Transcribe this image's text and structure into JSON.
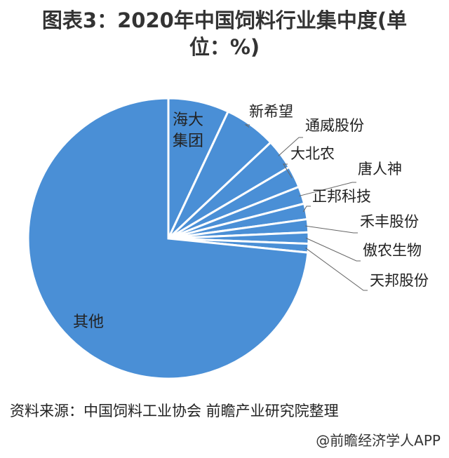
{
  "title": "图表3：2020年中国饲料行业集中度(单位：%)",
  "title_line1": "图表3：2020年中国饲料行业集中度(单",
  "title_line2": "位：%)",
  "source": "资料来源：中国饲料工业协会 前瞻产业研究院整理",
  "watermark": "@前瞻经济学人APP",
  "colors": {
    "slice_fill": "#4a8fd6",
    "slice_stroke": "#ffffff",
    "leader_line": "#666666"
  },
  "chart_data": {
    "type": "pie",
    "title": "图表3：2020年中国饲料行业集中度(单位：%)",
    "categories": [
      "海大集团",
      "新希望",
      "通威股份",
      "大北农",
      "唐人神",
      "正邦科技",
      "禾丰股份",
      "傲农生物",
      "天邦股份",
      "其他"
    ],
    "values": [
      7.0,
      6.0,
      3.5,
      2.5,
      2.0,
      1.8,
      1.5,
      1.3,
      1.0,
      73.4
    ],
    "label_style": "category names only, no percentages shown"
  }
}
